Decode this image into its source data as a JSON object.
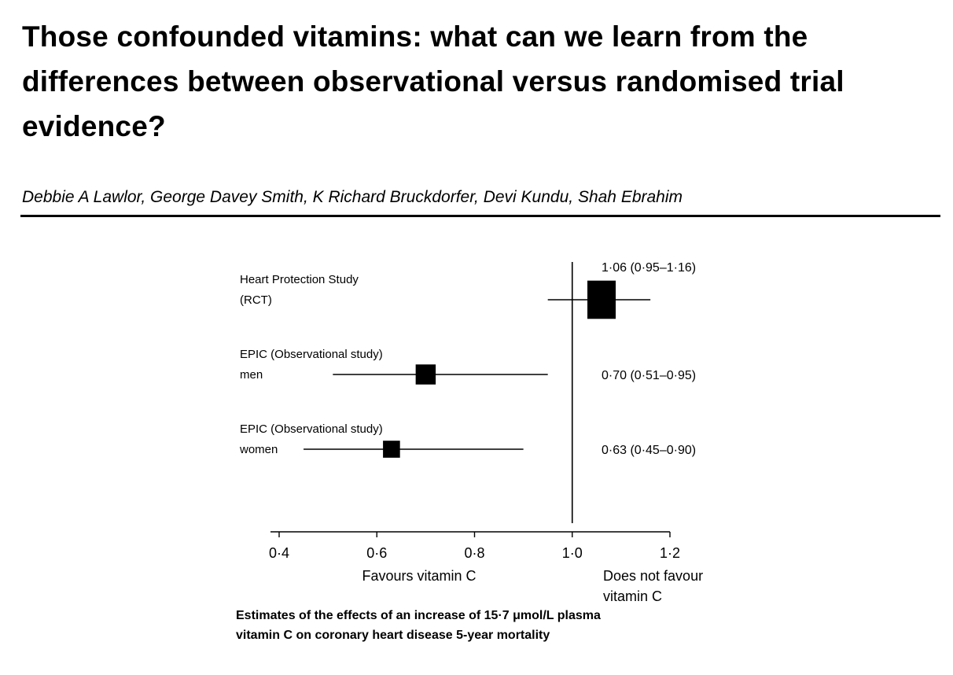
{
  "article": {
    "title": "Those confounded vitamins: what can we learn from the differences between observational versus randomised trial evidence?",
    "authors": "Debbie A Lawlor, George Davey Smith, K Richard Bruckdorfer, Devi Kundu, Shah Ebrahim"
  },
  "figure": {
    "caption_line1": "Estimates of the effects of an increase of 15·7 μmol/L plasma",
    "caption_line2": "vitamin C on coronary heart disease 5-year mortality"
  },
  "chart_data": {
    "type": "forest",
    "title": "",
    "xlabel_left": "Favours vitamin C",
    "xlabel_right_line1": "Does not favour",
    "xlabel_right_line2": "vitamin C",
    "xlim": [
      0.4,
      1.2
    ],
    "null_line": 1.0,
    "ticks": [
      {
        "value": 0.4,
        "label": "0·4"
      },
      {
        "value": 0.6,
        "label": "0·6"
      },
      {
        "value": 0.8,
        "label": "0·8"
      },
      {
        "value": 1.0,
        "label": "1·0"
      },
      {
        "value": 1.2,
        "label": "1·2"
      }
    ],
    "rows": [
      {
        "label_line1": "Heart Protection Study",
        "label_line2": "(RCT)",
        "estimate": 1.06,
        "lower": 0.95,
        "upper": 1.16,
        "weight": 1.0,
        "value_label": "1·06 (0·95–1·16)",
        "value_label_above": true
      },
      {
        "label_line1": "EPIC (Observational study)",
        "label_line2": "men",
        "estimate": 0.7,
        "lower": 0.51,
        "upper": 0.95,
        "weight": 0.5,
        "value_label": "0·70 (0·51–0·95)",
        "value_label_above": false
      },
      {
        "label_line1": "EPIC (Observational study)",
        "label_line2": "women",
        "estimate": 0.63,
        "lower": 0.45,
        "upper": 0.9,
        "weight": 0.36,
        "value_label": "0·63 (0·45–0·90)",
        "value_label_above": false
      }
    ]
  }
}
